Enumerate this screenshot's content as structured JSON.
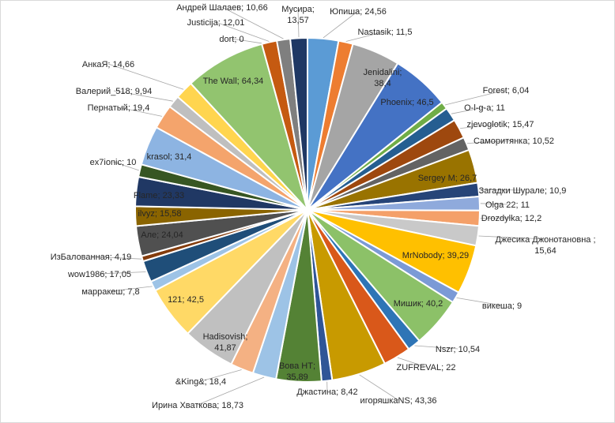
{
  "chart_data": {
    "type": "pie",
    "title": "",
    "legend": "none",
    "label_format": "{name}; {value}",
    "slices": [
      {
        "name": "Юпиша",
        "value": 24.56,
        "color": "#5b9bd5",
        "label": "Юпиша; 24,56"
      },
      {
        "name": "Nastasik",
        "value": 11.5,
        "color": "#ed7d31",
        "label": "Nastasik; 11,5"
      },
      {
        "name": "Jenidalini",
        "value": 38.4,
        "color": "#a5a5a5",
        "label": "Jenidalini; 38,4"
      },
      {
        "name": "Phoenix",
        "value": 46.5,
        "color": "#4472c4",
        "label": "Phoenix; 46,5"
      },
      {
        "name": "Forest",
        "value": 6.04,
        "color": "#70ad47",
        "label": "Forest; 6,04"
      },
      {
        "name": "O-l-g-a",
        "value": 11,
        "color": "#255e91",
        "label": "O-l-g-a; 11"
      },
      {
        "name": "zjevoglotik",
        "value": 15.47,
        "color": "#9e480e",
        "label": "zjevoglotik; 15,47"
      },
      {
        "name": "Саморитянка",
        "value": 10.52,
        "color": "#636363",
        "label": "Саморитянка; 10,52"
      },
      {
        "name": "Sergey M",
        "value": 26.7,
        "color": "#997300",
        "label": "Sergey M; 26,7"
      },
      {
        "name": "Загадки Шурале",
        "value": 10.9,
        "color": "#264478",
        "label": "Загадки Шурале; 10,9"
      },
      {
        "name": "Olga 22",
        "value": 11,
        "color": "#8faadc",
        "label": "Olga 22; 11"
      },
      {
        "name": "Drozdylka",
        "value": 12.2,
        "color": "#f4a069",
        "label": "Drozdylka; 12,2"
      },
      {
        "name": "Джесика Джонотановна ",
        "value": 15.64,
        "color": "#c9c9c9",
        "label": "Джесика Джонотановна ; 15,64"
      },
      {
        "name": "MrNobody",
        "value": 39.29,
        "color": "#ffc000",
        "label": "MrNobody; 39,29"
      },
      {
        "name": "викеша",
        "value": 9,
        "color": "#7b9ad6",
        "label": "викеша; 9"
      },
      {
        "name": "Мишик",
        "value": 40.2,
        "color": "#8cc168",
        "label": "Мишик; 40,2"
      },
      {
        "name": "Nszr",
        "value": 10.54,
        "color": "#2e75b6",
        "label": "Nszr; 10,54"
      },
      {
        "name": "ZUFREVAL",
        "value": 22,
        "color": "#d9581a",
        "label": "ZUFREVAL; 22"
      },
      {
        "name": "игоряшкаNS",
        "value": 43.36,
        "color": "#c89a00",
        "label": "игоряшкаNS; 43,36"
      },
      {
        "name": "Джастина",
        "value": 8.42,
        "color": "#2f5597",
        "label": "Джастина; 8,42"
      },
      {
        "name": "Вова НТ",
        "value": 35.89,
        "color": "#548235",
        "label": "Вова НТ; 35,89"
      },
      {
        "name": "Ирина Хваткова",
        "value": 18.73,
        "color": "#9dc3e6",
        "label": "Ирина Хваткова; 18,73"
      },
      {
        "name": "&King&",
        "value": 18.4,
        "color": "#f4b183",
        "label": "&King&; 18,4"
      },
      {
        "name": "Hadisovish",
        "value": 41.87,
        "color": "#c0c0c0",
        "label": "Hadisovish; 41,87"
      },
      {
        "name": "121",
        "value": 42.5,
        "color": "#ffd966",
        "label": "121; 42,5"
      },
      {
        "name": "марракеш",
        "value": 7.8,
        "color": "#9dc3e6",
        "label": "марракеш; 7,8"
      },
      {
        "name": "wow1986",
        "value": 17.05,
        "color": "#1f4e79",
        "label": "wow1986; 17,05"
      },
      {
        "name": "ИзБалованная",
        "value": 4.19,
        "color": "#843c0c",
        "label": "ИзБалованная; 4,19"
      },
      {
        "name": "Але",
        "value": 24.04,
        "color": "#505050",
        "label": "Але; 24,04"
      },
      {
        "name": "ilvyz",
        "value": 15.58,
        "color": "#8a6400",
        "label": "ilvyz; 15,58"
      },
      {
        "name": "Flame",
        "value": 23.33,
        "color": "#203864",
        "label": "Flame; 23,33"
      },
      {
        "name": "ex7ionic",
        "value": 10,
        "color": "#375623",
        "label": "ex7ionic; 10"
      },
      {
        "name": "krasol",
        "value": 31.4,
        "color": "#8db4e2",
        "label": "krasol; 31,4"
      },
      {
        "name": "Пернатый",
        "value": 19.4,
        "color": "#f4a46c",
        "label": "Пернатый; 19,4"
      },
      {
        "name": "Валерий_518",
        "value": 9.94,
        "color": "#bfbfbf",
        "label": "Валерий_518; 9,94"
      },
      {
        "name": "АнкаЯ",
        "value": 14.66,
        "color": "#ffd54f",
        "label": "АнкаЯ; 14,66"
      },
      {
        "name": "The Wall",
        "value": 64.34,
        "color": "#92c46f",
        "label": "The Wall; 64,34"
      },
      {
        "name": "dort",
        "value": 0,
        "color": "#2a5f9e",
        "label": "dort; 0"
      },
      {
        "name": "Justicija",
        "value": 12.01,
        "color": "#c55a11",
        "label": "Justicija; 12,01"
      },
      {
        "name": "Андрей Шалаев",
        "value": 10.66,
        "color": "#7f7f7f",
        "label": "Андрей Шалаев; 10,66"
      },
      {
        "name": "Мусира",
        "value": 13.57,
        "color": "#1f3864",
        "label": "Мусира; 13,57"
      }
    ]
  }
}
